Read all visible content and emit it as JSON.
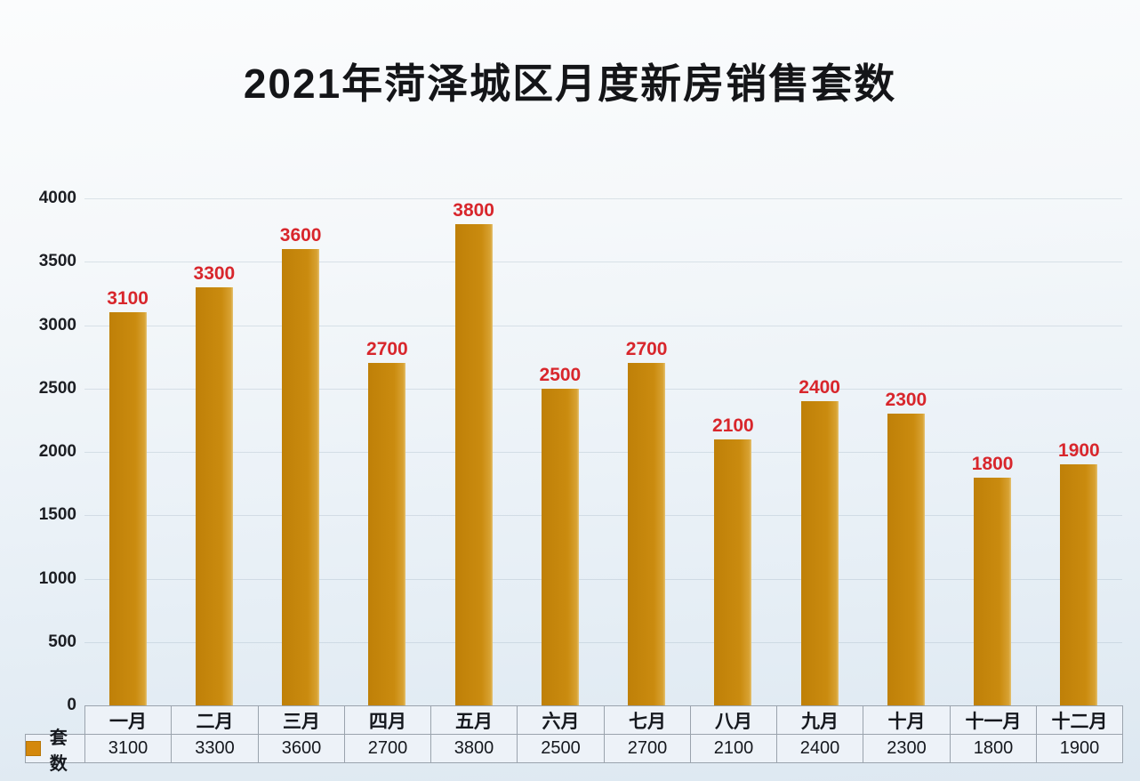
{
  "title": "2021年菏泽城区月度新房销售套数",
  "chart_data": {
    "type": "bar",
    "title": "2021年菏泽城区月度新房销售套数",
    "categories": [
      "一月",
      "二月",
      "三月",
      "四月",
      "五月",
      "六月",
      "七月",
      "八月",
      "九月",
      "十月",
      "十一月",
      "十二月"
    ],
    "series": [
      {
        "name": "套数",
        "values": [
          3100,
          3300,
          3600,
          2700,
          3800,
          2500,
          2700,
          2100,
          2400,
          2300,
          1800,
          1900
        ]
      }
    ],
    "xlabel": "",
    "ylabel": "",
    "ylim": [
      0,
      4000
    ],
    "yticks": [
      0,
      500,
      1000,
      1500,
      2000,
      2500,
      3000,
      3500,
      4000
    ],
    "grid": "horizontal",
    "data_labels": true,
    "legend_position": "bottom-table-left",
    "colors": {
      "bar": "#c8890e",
      "bar_edge_highlight": "#e4c274",
      "data_label": "#d8262c",
      "axis_text": "#1c1e23",
      "table_text": "#15181e",
      "table_border": "#9aa3ad",
      "table_cell_bg": "#edf2f8",
      "background_top": "#fbfcfd",
      "background_bottom": "#dde8f1"
    }
  }
}
